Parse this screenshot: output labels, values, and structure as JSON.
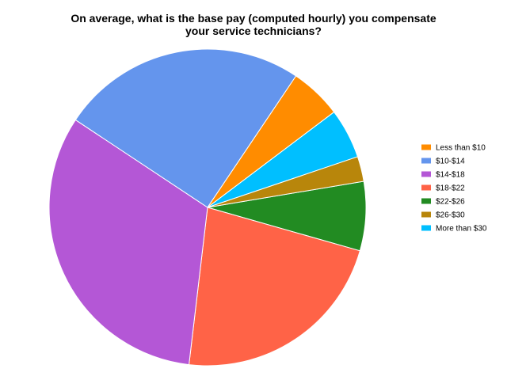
{
  "chart_data": {
    "type": "pie",
    "title": "On average, what is the base pay (computed hourly) you compensate your service technicians?",
    "title_lines": [
      "On average, what is the base pay (computed hourly) you compensate",
      "your service technicians?"
    ],
    "categories": [
      "Less than $10",
      "$10-$14",
      "$14-$18",
      "$18-$22",
      "$22-$26",
      "$26-$30",
      "More than $30"
    ],
    "values": [
      5.4,
      25.6,
      33.1,
      22.9,
      7.2,
      2.6,
      5.2
    ],
    "colors": [
      "#ff8c00",
      "#6495ed",
      "#b457d6",
      "#ff6347",
      "#228b22",
      "#b8860b",
      "#00bfff"
    ],
    "start_category": "$22-$26",
    "direction": "clockwise",
    "legend_position": "right"
  }
}
